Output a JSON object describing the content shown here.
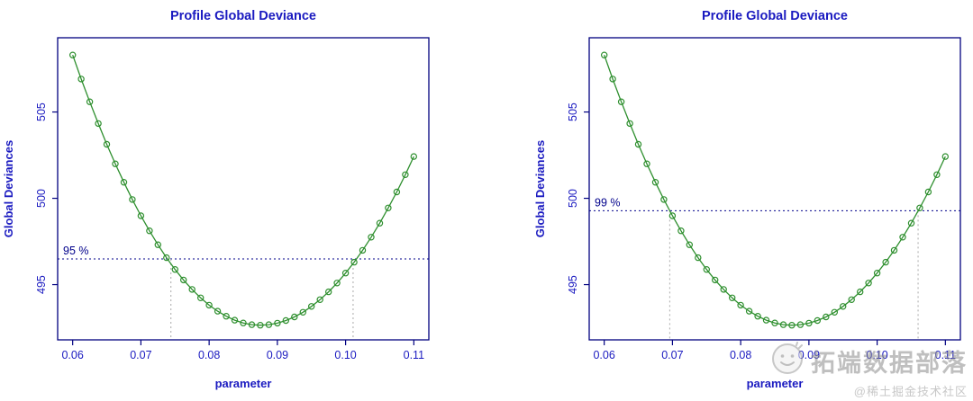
{
  "colors": {
    "axis_text": "#1a1ac0",
    "box_border": "#000080",
    "curve_green": "#2e8f2e",
    "ci_line_navy": "#00008b",
    "ci_line_gray": "#a8a8a8",
    "watermark_gray": "#8c8c8c"
  },
  "watermark": {
    "brand": "拓端数据部落",
    "credit": "@稀土掘金技术社区"
  },
  "chart_data": [
    {
      "type": "line",
      "title": "Profile Global Deviance",
      "xlabel": "parameter",
      "ylabel": "Global Deviances",
      "xlim": [
        0.0578,
        0.1122
      ],
      "ylim": [
        491.8,
        509.3
      ],
      "xticks": [
        0.06,
        0.07,
        0.08,
        0.09,
        0.1,
        0.11
      ],
      "xtick_labels": [
        "0.06",
        "0.07",
        "0.08",
        "0.09",
        "0.10",
        "0.11"
      ],
      "yticks": [
        495,
        500,
        505
      ],
      "ytick_labels": [
        "495",
        "500",
        "505"
      ],
      "grid": false,
      "legend": "none",
      "ci": {
        "label": "95 %",
        "deviance": 496.49,
        "interval": [
          0.0744,
          0.1011
        ]
      },
      "x": [
        0.06,
        0.06125,
        0.0625,
        0.06375,
        0.065,
        0.06625,
        0.0675,
        0.06875,
        0.07,
        0.07125,
        0.0725,
        0.07375,
        0.075,
        0.07625,
        0.0775,
        0.07875,
        0.08,
        0.08125,
        0.0825,
        0.08375,
        0.085,
        0.08625,
        0.0875,
        0.08875,
        0.09,
        0.09125,
        0.0925,
        0.09375,
        0.095,
        0.09625,
        0.0975,
        0.09875,
        0.1,
        0.10125,
        0.1025,
        0.10375,
        0.105,
        0.10625,
        0.1075,
        0.10875,
        0.11
      ],
      "y": [
        508.3,
        506.91,
        505.59,
        504.33,
        503.13,
        502.0,
        500.93,
        499.93,
        498.99,
        498.12,
        497.31,
        496.56,
        495.88,
        495.27,
        494.72,
        494.23,
        493.81,
        493.46,
        493.17,
        492.94,
        492.78,
        492.68,
        492.65,
        492.68,
        492.77,
        492.92,
        493.13,
        493.4,
        493.74,
        494.13,
        494.58,
        495.09,
        495.67,
        496.3,
        496.99,
        497.75,
        498.56,
        499.44,
        500.37,
        501.37,
        502.42
      ]
    },
    {
      "type": "line",
      "title": "Profile Global Deviance",
      "xlabel": "parameter",
      "ylabel": "Global Deviances",
      "xlim": [
        0.0578,
        0.1122
      ],
      "ylim": [
        491.8,
        509.3
      ],
      "xticks": [
        0.06,
        0.07,
        0.08,
        0.09,
        0.1,
        0.11
      ],
      "xtick_labels": [
        "0.06",
        "0.07",
        "0.08",
        "0.09",
        "0.10",
        "0.11"
      ],
      "yticks": [
        495,
        500,
        505
      ],
      "ytick_labels": [
        "495",
        "500",
        "505"
      ],
      "grid": false,
      "legend": "none",
      "ci": {
        "label": "99 %",
        "deviance": 499.28,
        "interval": [
          0.0696,
          0.106
        ]
      },
      "x": [
        0.06,
        0.06125,
        0.0625,
        0.06375,
        0.065,
        0.06625,
        0.0675,
        0.06875,
        0.07,
        0.07125,
        0.0725,
        0.07375,
        0.075,
        0.07625,
        0.0775,
        0.07875,
        0.08,
        0.08125,
        0.0825,
        0.08375,
        0.085,
        0.08625,
        0.0875,
        0.08875,
        0.09,
        0.09125,
        0.0925,
        0.09375,
        0.095,
        0.09625,
        0.0975,
        0.09875,
        0.1,
        0.10125,
        0.1025,
        0.10375,
        0.105,
        0.10625,
        0.1075,
        0.10875,
        0.11
      ],
      "y": [
        508.3,
        506.91,
        505.59,
        504.33,
        503.13,
        502.0,
        500.93,
        499.93,
        498.99,
        498.12,
        497.31,
        496.56,
        495.88,
        495.27,
        494.72,
        494.23,
        493.81,
        493.46,
        493.17,
        492.94,
        492.78,
        492.68,
        492.65,
        492.68,
        492.77,
        492.92,
        493.13,
        493.4,
        493.74,
        494.13,
        494.58,
        495.09,
        495.67,
        496.3,
        496.99,
        497.75,
        498.56,
        499.44,
        500.37,
        501.37,
        502.42
      ]
    }
  ]
}
